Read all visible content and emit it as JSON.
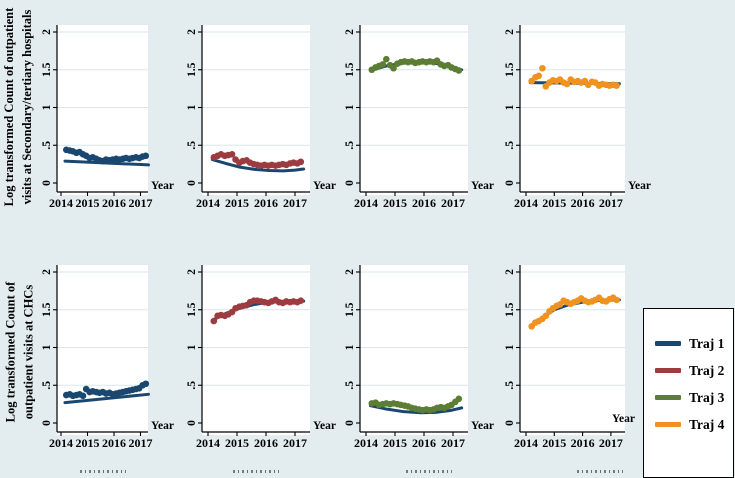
{
  "figure_type": "trajectory-small-multiples",
  "colors": {
    "background": "#e3edf0",
    "plot_background": "#ffffff",
    "gridline": "#d9e7ed",
    "axis": "#000000",
    "traj1_navy": "#1a476f",
    "traj2_maroon": "#9d3c40",
    "traj3_green": "#5d7d34",
    "traj4_orange": "#f0921f"
  },
  "titles": {
    "row1_line1": "Log transformed Count of outpatient",
    "row1_line2": "visits at Secondary/tertiary hospitals",
    "row2_line1": "Log transformed Count of",
    "row2_line2": "outpatient visits at CHCs"
  },
  "legend": {
    "items": [
      {
        "label": "Traj 1",
        "color": "#1a476f"
      },
      {
        "label": "Traj 2",
        "color": "#9d3c40"
      },
      {
        "label": "Traj 3",
        "color": "#5d7d34"
      },
      {
        "label": "Traj 4",
        "color": "#f0921f"
      }
    ]
  },
  "chart_data": {
    "type": "scatter",
    "layout": "2 rows x 4 columns small multiples, one trajectory group per column",
    "x_label": "Year",
    "x_ticks": [
      2014,
      2015,
      2016,
      2017
    ],
    "x_range": [
      2013.85,
      2017.45
    ],
    "y_ticks": [
      0,
      0.5,
      1,
      1.5,
      2
    ],
    "y_tick_labels": [
      "0",
      ".5",
      "1",
      "1.5",
      "2"
    ],
    "y_range": [
      -0.12,
      2.09
    ],
    "grid": "horizontal gridlines at y ticks",
    "legend_position": "right of bottom-right subplot",
    "row_ylabels": [
      "Log transformed Count of outpatient visits at Secondary/tertiary hospitals",
      "Log transformed Count of outpatient visits at CHCs"
    ],
    "x_monthly": [
      2014.2,
      2014.33,
      2014.45,
      2014.58,
      2014.7,
      2014.83,
      2014.95,
      2015.08,
      2015.2,
      2015.33,
      2015.45,
      2015.58,
      2015.7,
      2015.83,
      2015.95,
      2016.08,
      2016.2,
      2016.33,
      2016.45,
      2016.58,
      2016.7,
      2016.83,
      2016.95,
      2017.08,
      2017.2
    ],
    "fit_line_color": "#1a476f",
    "subplots": [
      {
        "row": 0,
        "col": 0,
        "trajectory": "Traj 1",
        "color": "#1a476f",
        "points": [
          0.44,
          0.43,
          0.42,
          0.4,
          0.41,
          0.38,
          0.36,
          0.33,
          0.34,
          0.32,
          0.3,
          0.29,
          0.31,
          0.3,
          0.31,
          0.32,
          0.31,
          0.32,
          0.33,
          0.32,
          0.33,
          0.34,
          0.33,
          0.35,
          0.36
        ],
        "fit": {
          "x": [
            2014.15,
            2017.3
          ],
          "y": [
            0.29,
            0.24
          ]
        }
      },
      {
        "row": 0,
        "col": 1,
        "trajectory": "Traj 2",
        "color": "#9d3c40",
        "points": [
          0.34,
          0.36,
          0.38,
          0.36,
          0.37,
          0.38,
          0.31,
          0.27,
          0.29,
          0.3,
          0.27,
          0.25,
          0.24,
          0.23,
          0.24,
          0.23,
          0.24,
          0.23,
          0.24,
          0.25,
          0.24,
          0.26,
          0.27,
          0.26,
          0.28
        ],
        "fit": {
          "x": [
            2014.15,
            2014.6,
            2015.1,
            2015.6,
            2016.1,
            2016.6,
            2017.0,
            2017.3
          ],
          "y": [
            0.31,
            0.26,
            0.21,
            0.18,
            0.165,
            0.16,
            0.17,
            0.185
          ]
        }
      },
      {
        "row": 0,
        "col": 2,
        "trajectory": "Traj 3",
        "color": "#5d7d34",
        "points": [
          1.5,
          1.53,
          1.55,
          1.57,
          1.64,
          1.56,
          1.52,
          1.58,
          1.6,
          1.61,
          1.6,
          1.61,
          1.59,
          1.6,
          1.61,
          1.6,
          1.61,
          1.6,
          1.62,
          1.57,
          1.55,
          1.56,
          1.53,
          1.51,
          1.49
        ],
        "fit": {
          "x": [
            2014.15,
            2014.7,
            2015.2,
            2015.7,
            2016.2,
            2016.7,
            2017.3
          ],
          "y": [
            1.49,
            1.55,
            1.585,
            1.6,
            1.595,
            1.57,
            1.5
          ]
        }
      },
      {
        "row": 0,
        "col": 3,
        "trajectory": "Traj 4",
        "color": "#f0921f",
        "points": [
          1.35,
          1.4,
          1.42,
          1.52,
          1.28,
          1.33,
          1.36,
          1.35,
          1.37,
          1.33,
          1.31,
          1.37,
          1.34,
          1.35,
          1.33,
          1.35,
          1.3,
          1.34,
          1.33,
          1.29,
          1.31,
          1.3,
          1.29,
          1.3,
          1.29
        ],
        "fit": {
          "x": [
            2014.15,
            2017.3
          ],
          "y": [
            1.33,
            1.315
          ]
        }
      },
      {
        "row": 1,
        "col": 0,
        "trajectory": "Traj 1",
        "color": "#1a476f",
        "points": [
          0.37,
          0.38,
          0.36,
          0.37,
          0.38,
          0.36,
          0.45,
          0.41,
          0.42,
          0.41,
          0.4,
          0.41,
          0.39,
          0.4,
          0.38,
          0.39,
          0.4,
          0.41,
          0.42,
          0.43,
          0.44,
          0.45,
          0.46,
          0.5,
          0.52
        ],
        "fit": {
          "x": [
            2014.15,
            2017.3
          ],
          "y": [
            0.27,
            0.38
          ]
        }
      },
      {
        "row": 1,
        "col": 1,
        "trajectory": "Traj 2",
        "color": "#9d3c40",
        "points": [
          1.35,
          1.42,
          1.43,
          1.42,
          1.44,
          1.47,
          1.52,
          1.54,
          1.55,
          1.56,
          1.6,
          1.62,
          1.62,
          1.61,
          1.6,
          1.59,
          1.61,
          1.63,
          1.6,
          1.59,
          1.61,
          1.6,
          1.61,
          1.6,
          1.62
        ],
        "fit": {
          "x": [
            2014.15,
            2014.6,
            2015.1,
            2015.6,
            2016.1,
            2016.7,
            2017.3
          ],
          "y": [
            1.36,
            1.45,
            1.52,
            1.57,
            1.6,
            1.61,
            1.615
          ]
        }
      },
      {
        "row": 1,
        "col": 2,
        "trajectory": "Traj 3",
        "color": "#5d7d34",
        "points": [
          0.26,
          0.27,
          0.24,
          0.25,
          0.26,
          0.25,
          0.26,
          0.25,
          0.24,
          0.23,
          0.22,
          0.2,
          0.19,
          0.18,
          0.17,
          0.18,
          0.17,
          0.18,
          0.2,
          0.21,
          0.2,
          0.22,
          0.24,
          0.28,
          0.32
        ],
        "fit": {
          "x": [
            2014.15,
            2014.7,
            2015.3,
            2015.9,
            2016.4,
            2016.9,
            2017.3
          ],
          "y": [
            0.23,
            0.185,
            0.15,
            0.135,
            0.14,
            0.165,
            0.2
          ]
        }
      },
      {
        "row": 1,
        "col": 3,
        "trajectory": "Traj 4",
        "color": "#f0921f",
        "points": [
          1.28,
          1.33,
          1.35,
          1.38,
          1.42,
          1.48,
          1.52,
          1.55,
          1.57,
          1.62,
          1.6,
          1.58,
          1.6,
          1.62,
          1.65,
          1.62,
          1.6,
          1.61,
          1.63,
          1.66,
          1.62,
          1.61,
          1.64,
          1.66,
          1.63
        ],
        "fit": {
          "x": [
            2014.15,
            2014.6,
            2015.0,
            2015.5,
            2016.0,
            2016.6,
            2017.3
          ],
          "y": [
            1.27,
            1.4,
            1.5,
            1.565,
            1.6,
            1.625,
            1.63
          ]
        }
      }
    ]
  }
}
